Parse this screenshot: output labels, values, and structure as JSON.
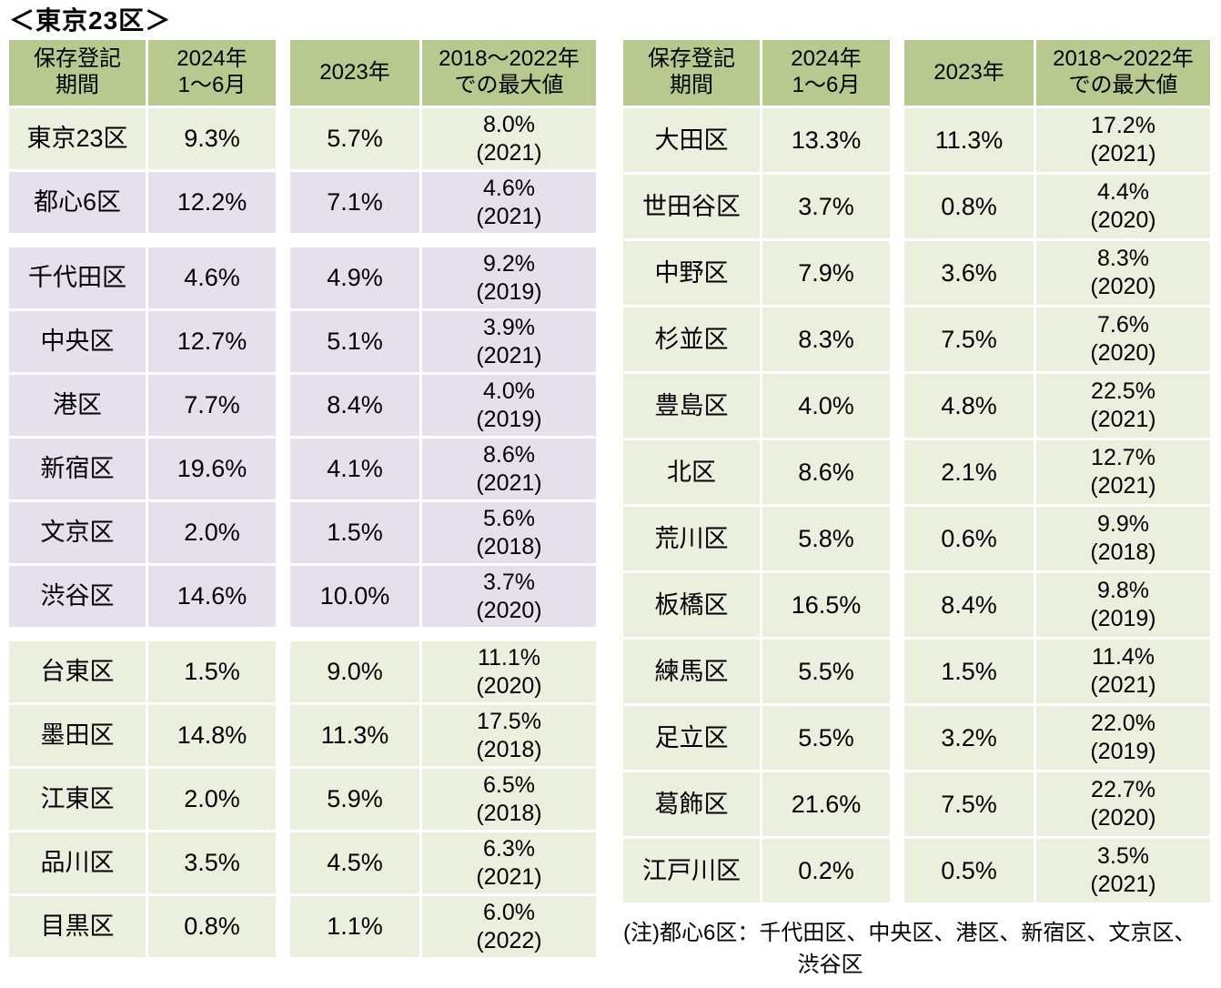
{
  "title": "＜東京23区＞",
  "colors": {
    "header_bg": "#b7c98e",
    "green_row_bg": "#eaf0dd",
    "purple_row_bg": "#e5e0ec",
    "text": "#000000",
    "page_bg": "#ffffff"
  },
  "header": {
    "col1_line1": "保存登記",
    "col1_line2": "期間",
    "col2_line1": "2024年",
    "col2_line2": "1～6月",
    "col3": "2023年",
    "col4_line1": "2018～2022年",
    "col4_line2": "での最大値"
  },
  "tables": [
    {
      "id": "left",
      "rows": [
        {
          "ward": "東京23区",
          "h1_2024": "9.3%",
          "y2023": "5.7%",
          "max_value": "8.0%",
          "max_year": "(2021)",
          "variant": "green",
          "gap_after": false
        },
        {
          "ward": "都心6区",
          "h1_2024": "12.2%",
          "y2023": "7.1%",
          "max_value": "4.6%",
          "max_year": "(2021)",
          "variant": "purple",
          "gap_after": true
        },
        {
          "ward": "千代田区",
          "h1_2024": "4.6%",
          "y2023": "4.9%",
          "max_value": "9.2%",
          "max_year": "(2019)",
          "variant": "purple",
          "gap_after": false
        },
        {
          "ward": "中央区",
          "h1_2024": "12.7%",
          "y2023": "5.1%",
          "max_value": "3.9%",
          "max_year": "(2021)",
          "variant": "purple",
          "gap_after": false
        },
        {
          "ward": "港区",
          "h1_2024": "7.7%",
          "y2023": "8.4%",
          "max_value": "4.0%",
          "max_year": "(2019)",
          "variant": "purple",
          "gap_after": false
        },
        {
          "ward": "新宿区",
          "h1_2024": "19.6%",
          "y2023": "4.1%",
          "max_value": "8.6%",
          "max_year": "(2021)",
          "variant": "purple",
          "gap_after": false
        },
        {
          "ward": "文京区",
          "h1_2024": "2.0%",
          "y2023": "1.5%",
          "max_value": "5.6%",
          "max_year": "(2018)",
          "variant": "purple",
          "gap_after": false
        },
        {
          "ward": "渋谷区",
          "h1_2024": "14.6%",
          "y2023": "10.0%",
          "max_value": "3.7%",
          "max_year": "(2020)",
          "variant": "purple",
          "gap_after": true
        },
        {
          "ward": "台東区",
          "h1_2024": "1.5%",
          "y2023": "9.0%",
          "max_value": "11.1%",
          "max_year": "(2020)",
          "variant": "green",
          "gap_after": false
        },
        {
          "ward": "墨田区",
          "h1_2024": "14.8%",
          "y2023": "11.3%",
          "max_value": "17.5%",
          "max_year": "(2018)",
          "variant": "green",
          "gap_after": false
        },
        {
          "ward": "江東区",
          "h1_2024": "2.0%",
          "y2023": "5.9%",
          "max_value": "6.5%",
          "max_year": "(2018)",
          "variant": "green",
          "gap_after": false
        },
        {
          "ward": "品川区",
          "h1_2024": "3.5%",
          "y2023": "4.5%",
          "max_value": "6.3%",
          "max_year": "(2021)",
          "variant": "green",
          "gap_after": false
        },
        {
          "ward": "目黒区",
          "h1_2024": "0.8%",
          "y2023": "1.1%",
          "max_value": "6.0%",
          "max_year": "(2022)",
          "variant": "green",
          "gap_after": false
        }
      ]
    },
    {
      "id": "right",
      "rows": [
        {
          "ward": "大田区",
          "h1_2024": "13.3%",
          "y2023": "11.3%",
          "max_value": "17.2%",
          "max_year": "(2021)",
          "variant": "green",
          "gap_after": false
        },
        {
          "ward": "世田谷区",
          "h1_2024": "3.7%",
          "y2023": "0.8%",
          "max_value": "4.4%",
          "max_year": "(2020)",
          "variant": "green",
          "gap_after": false
        },
        {
          "ward": "中野区",
          "h1_2024": "7.9%",
          "y2023": "3.6%",
          "max_value": "8.3%",
          "max_year": "(2020)",
          "variant": "green",
          "gap_after": false
        },
        {
          "ward": "杉並区",
          "h1_2024": "8.3%",
          "y2023": "7.5%",
          "max_value": "7.6%",
          "max_year": "(2020)",
          "variant": "green",
          "gap_after": false
        },
        {
          "ward": "豊島区",
          "h1_2024": "4.0%",
          "y2023": "4.8%",
          "max_value": "22.5%",
          "max_year": "(2021)",
          "variant": "green",
          "gap_after": false
        },
        {
          "ward": "北区",
          "h1_2024": "8.6%",
          "y2023": "2.1%",
          "max_value": "12.7%",
          "max_year": "(2021)",
          "variant": "green",
          "gap_after": false
        },
        {
          "ward": "荒川区",
          "h1_2024": "5.8%",
          "y2023": "0.6%",
          "max_value": "9.9%",
          "max_year": "(2018)",
          "variant": "green",
          "gap_after": false
        },
        {
          "ward": "板橋区",
          "h1_2024": "16.5%",
          "y2023": "8.4%",
          "max_value": "9.8%",
          "max_year": "(2019)",
          "variant": "green",
          "gap_after": false
        },
        {
          "ward": "練馬区",
          "h1_2024": "5.5%",
          "y2023": "1.5%",
          "max_value": "11.4%",
          "max_year": "(2021)",
          "variant": "green",
          "gap_after": false
        },
        {
          "ward": "足立区",
          "h1_2024": "5.5%",
          "y2023": "3.2%",
          "max_value": "22.0%",
          "max_year": "(2019)",
          "variant": "green",
          "gap_after": false
        },
        {
          "ward": "葛飾区",
          "h1_2024": "21.6%",
          "y2023": "7.5%",
          "max_value": "22.7%",
          "max_year": "(2020)",
          "variant": "green",
          "gap_after": false
        },
        {
          "ward": "江戸川区",
          "h1_2024": "0.2%",
          "y2023": "0.5%",
          "max_value": "3.5%",
          "max_year": "(2021)",
          "variant": "green",
          "gap_after": false
        }
      ]
    }
  ],
  "note": {
    "line1": "(注)都心6区：千代田区、中央区、港区、新宿区、文京区、",
    "line2": "渋谷区"
  }
}
